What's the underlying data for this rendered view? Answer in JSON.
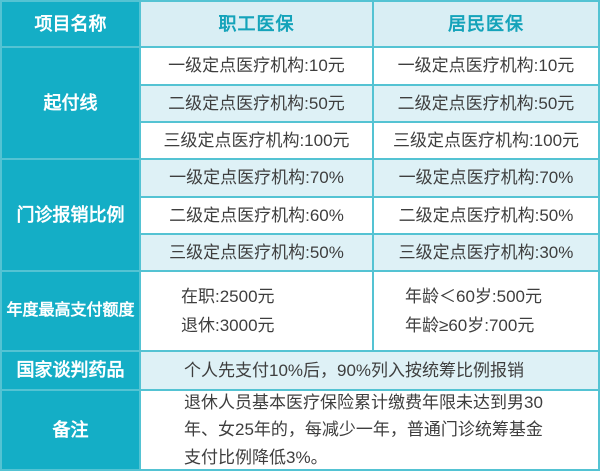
{
  "colors": {
    "teal": "#14aec6",
    "header_cell_bg": "#d9eef4",
    "header_text": "#14a3ba",
    "row_alt_bg": "#def1f6",
    "grid_line": "#54c3d3",
    "body_text": "#3e3e3e"
  },
  "header": {
    "item_name": "项目名称",
    "employee": "职工医保",
    "resident": "居民医保"
  },
  "deductible": {
    "label": "起付线",
    "rows": [
      {
        "employee": "一级定点医疗机构:10元",
        "resident": "一级定点医疗机构:10元"
      },
      {
        "employee": "二级定点医疗机构:50元",
        "resident": "二级定点医疗机构:50元"
      },
      {
        "employee": "三级定点医疗机构:100元",
        "resident": "三级定点医疗机构:100元"
      }
    ]
  },
  "outpatient_ratio": {
    "label": "门诊报销比例",
    "rows": [
      {
        "employee": "一级定点医疗机构:70%",
        "resident": "一级定点医疗机构:70%"
      },
      {
        "employee": "二级定点医疗机构:60%",
        "resident": "二级定点医疗机构:50%"
      },
      {
        "employee": "三级定点医疗机构:50%",
        "resident": "三级定点医疗机构:30%"
      }
    ]
  },
  "annual_max": {
    "label": "年度最高支付额度",
    "employee": {
      "line1": "在职:2500元",
      "line2": "退休:3000元"
    },
    "resident": {
      "line1": "年龄＜60岁:500元",
      "line2": "年龄≥60岁:700元"
    }
  },
  "negotiated_drugs": {
    "label": "国家谈判药品",
    "content": "个人先支付10%后，90%列入按统筹比例报销"
  },
  "notes": {
    "label": "备注",
    "content": "退休人员基本医疗保险累计缴费年限未达到男30年、女25年的，每减少一年，普通门诊统筹基金支付比例降低3%。"
  }
}
